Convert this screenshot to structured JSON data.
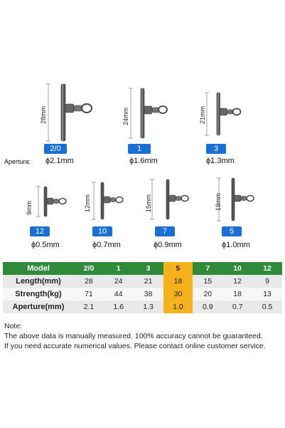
{
  "aperture_label": "Apertura:",
  "products": [
    {
      "size": "2/0",
      "length_label": "28mm",
      "diameter": "ϕ2.1mm"
    },
    {
      "size": "1",
      "length_label": "24mm",
      "diameter": "ϕ1.6mm"
    },
    {
      "size": "3",
      "length_label": "21mm",
      "diameter": "ϕ1.3mm"
    },
    {
      "size": "12",
      "length_label": "9mm",
      "diameter": "ϕ0.5mm"
    },
    {
      "size": "10",
      "length_label": "12mm",
      "diameter": "ϕ0.7mm"
    },
    {
      "size": "7",
      "length_label": "15mm",
      "diameter": "ϕ0.9mm"
    },
    {
      "size": "5",
      "length_label": "18mm",
      "diameter": "ϕ1.0mm"
    }
  ],
  "table": {
    "columns": [
      "Model",
      "2/0",
      "1",
      "3",
      "5",
      "7",
      "10",
      "12"
    ],
    "rows": [
      {
        "label": "Length(mm)",
        "values": [
          "28",
          "24",
          "21",
          "18",
          "15",
          "12",
          "9"
        ]
      },
      {
        "label": "Strength(kg)",
        "values": [
          "71",
          "44",
          "38",
          "30",
          "20",
          "18",
          "13"
        ]
      },
      {
        "label": "Aperture(mm)",
        "values": [
          "2.1",
          "1.6",
          "1.3",
          "1.0",
          "0.9",
          "0.7",
          "0.5"
        ]
      }
    ],
    "highlight_column": 4,
    "highlight_color": "#f6b21c",
    "header_color": "#2f8a3a"
  },
  "note": {
    "title": "Note:",
    "line1": "The above data is manually measured. 100% accuracy cannot be guaranteed.",
    "line2": "If you need accurate numerical values. Please contact online customer service."
  },
  "badge_color": "#1a6fd6"
}
